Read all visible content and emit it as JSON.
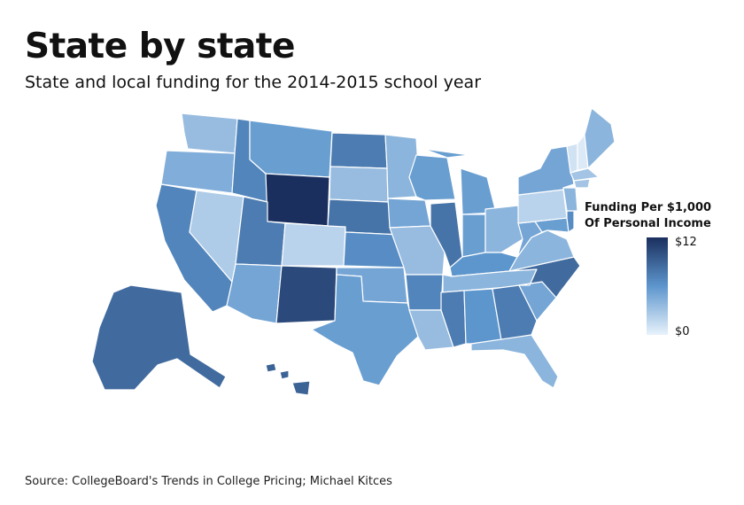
{
  "title": "State by state",
  "subtitle": "State and local funding for the 2014-2015 school year",
  "legend": {
    "title_line1": "Funding Per $1,000",
    "title_line2": "Of Personal Income",
    "max_label": "$12",
    "min_label": "$0",
    "color_low": "#e8f2fb",
    "color_high": "#1a2f5e"
  },
  "source": "Source: CollegeBoard's Trends in College Pricing; Michael Kitces",
  "chart_data": {
    "type": "choropleth",
    "value_range": [
      0,
      12
    ],
    "units": "USD per $1,000 of personal income",
    "states": [
      {
        "id": "WA",
        "value": 3.5
      },
      {
        "id": "OR",
        "value": 4.5
      },
      {
        "id": "CA",
        "value": 7.0
      },
      {
        "id": "NV",
        "value": 2.5
      },
      {
        "id": "ID",
        "value": 7.0
      },
      {
        "id": "MT",
        "value": 5.5
      },
      {
        "id": "WY",
        "value": 12.0
      },
      {
        "id": "UT",
        "value": 7.5
      },
      {
        "id": "AZ",
        "value": 5.0
      },
      {
        "id": "CO",
        "value": 2.0
      },
      {
        "id": "NM",
        "value": 10.5
      },
      {
        "id": "ND",
        "value": 7.5
      },
      {
        "id": "SD",
        "value": 3.5
      },
      {
        "id": "NE",
        "value": 8.0
      },
      {
        "id": "KS",
        "value": 6.5
      },
      {
        "id": "OK",
        "value": 5.0
      },
      {
        "id": "TX",
        "value": 5.5
      },
      {
        "id": "MN",
        "value": 4.0
      },
      {
        "id": "IA",
        "value": 5.0
      },
      {
        "id": "MO",
        "value": 3.5
      },
      {
        "id": "AR",
        "value": 7.0
      },
      {
        "id": "LA",
        "value": 3.5
      },
      {
        "id": "WI",
        "value": 5.5
      },
      {
        "id": "IL",
        "value": 8.0
      },
      {
        "id": "MI",
        "value": 5.5
      },
      {
        "id": "IN",
        "value": 5.5
      },
      {
        "id": "OH",
        "value": 4.0
      },
      {
        "id": "KY",
        "value": 6.0
      },
      {
        "id": "TN",
        "value": 4.0
      },
      {
        "id": "MS",
        "value": 7.5
      },
      {
        "id": "AL",
        "value": 6.0
      },
      {
        "id": "GA",
        "value": 7.5
      },
      {
        "id": "FL",
        "value": 4.0
      },
      {
        "id": "SC",
        "value": 5.0
      },
      {
        "id": "NC",
        "value": 8.5
      },
      {
        "id": "VA",
        "value": 4.0
      },
      {
        "id": "WV",
        "value": 5.0
      },
      {
        "id": "PA",
        "value": 2.0
      },
      {
        "id": "NY",
        "value": 5.0
      },
      {
        "id": "ME",
        "value": 4.0
      },
      {
        "id": "VT",
        "value": 1.0
      },
      {
        "id": "NH",
        "value": 0.5
      },
      {
        "id": "MA",
        "value": 3.0
      },
      {
        "id": "CT",
        "value": 3.0
      },
      {
        "id": "NJ",
        "value": 4.0
      },
      {
        "id": "DE",
        "value": 6.5
      },
      {
        "id": "MD",
        "value": 5.5
      },
      {
        "id": "AK",
        "value": 8.5
      },
      {
        "id": "HI",
        "value": 9.0
      }
    ]
  }
}
